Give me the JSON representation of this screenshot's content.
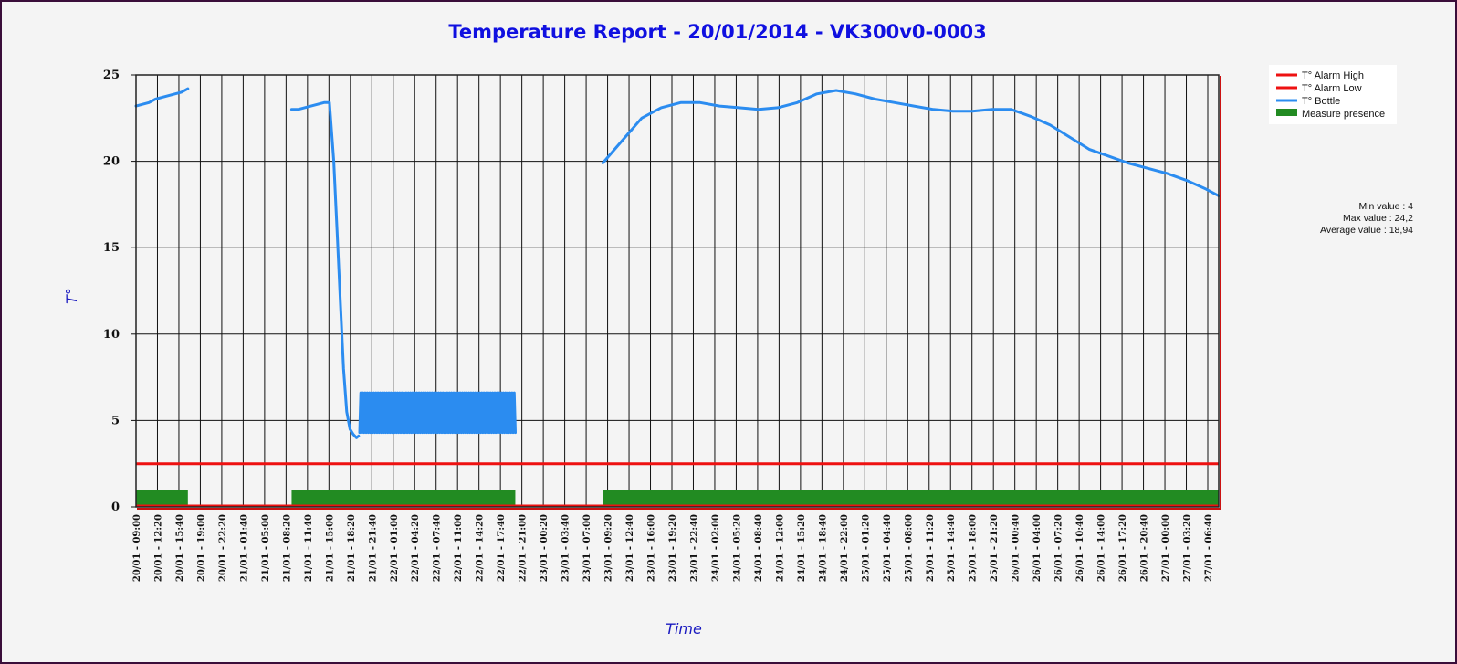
{
  "chart_data": {
    "type": "line",
    "title": "Temperature Report - 20/01/2014 - VK300v0-0003",
    "xlabel": "Time",
    "ylabel": "T°",
    "ylim": [
      0,
      25
    ],
    "yticks": [
      0,
      5,
      10,
      15,
      20,
      25
    ],
    "grid": true,
    "legend_position": "top-right",
    "x_range": [
      "20/01/2014 09:00",
      "27/01/2014 08:00"
    ],
    "x_tick_labels": [
      "20/01 - 09:00",
      "20/01 - 12:20",
      "20/01 - 15:40",
      "20/01 - 19:00",
      "20/01 - 22:20",
      "21/01 - 01:40",
      "21/01 - 05:00",
      "21/01 - 08:20",
      "21/01 - 11:40",
      "21/01 - 15:00",
      "21/01 - 18:20",
      "21/01 - 21:40",
      "22/01 - 01:00",
      "22/01 - 04:20",
      "22/01 - 07:40",
      "22/01 - 11:00",
      "22/01 - 14:20",
      "22/01 - 17:40",
      "22/01 - 21:00",
      "23/01 - 00:20",
      "23/01 - 03:40",
      "23/01 - 07:00",
      "23/01 - 09:20",
      "23/01 - 12:40",
      "23/01 - 16:00",
      "23/01 - 19:20",
      "23/01 - 22:40",
      "24/01 - 02:00",
      "24/01 - 05:20",
      "24/01 - 08:40",
      "24/01 - 12:00",
      "24/01 - 15:20",
      "24/01 - 18:40",
      "24/01 - 22:00",
      "25/01 - 01:20",
      "25/01 - 04:40",
      "25/01 - 08:00",
      "25/01 - 11:20",
      "25/01 - 14:40",
      "25/01 - 18:00",
      "25/01 - 21:20",
      "26/01 - 00:40",
      "26/01 - 04:00",
      "26/01 - 07:20",
      "26/01 - 10:40",
      "26/01 - 14:00",
      "26/01 - 17:20",
      "26/01 - 20:40",
      "27/01 - 00:00",
      "27/01 - 03:20",
      "27/01 - 06:40"
    ],
    "series": [
      {
        "name": "T° Alarm High",
        "color": "#ee1111",
        "kind": "line",
        "values": []
      },
      {
        "name": "T° Alarm Low",
        "color": "#ee1111",
        "kind": "line",
        "x": [
          "20/01/2014 09:00",
          "27/01/2014 08:00"
        ],
        "y": [
          2.5,
          2.5
        ]
      },
      {
        "name": "T° Bottle",
        "color": "#2b8cf0",
        "kind": "line",
        "segments": [
          {
            "x": [
              "20/01/2014 09:00",
              "20/01/2014 10:00",
              "20/01/2014 11:00",
              "20/01/2014 12:00",
              "20/01/2014 13:00",
              "20/01/2014 14:00",
              "20/01/2014 15:00",
              "20/01/2014 16:00",
              "20/01/2014 17:00"
            ],
            "y": [
              23.2,
              23.3,
              23.4,
              23.6,
              23.7,
              23.8,
              23.9,
              24.0,
              24.2
            ]
          },
          {
            "x": [
              "21/01/2014 09:00",
              "21/01/2014 10:00",
              "21/01/2014 11:00",
              "21/01/2014 12:00",
              "21/01/2014 13:00",
              "21/01/2014 14:00",
              "21/01/2014 14:50",
              "21/01/2014 15:30",
              "21/01/2014 16:00",
              "21/01/2014 16:30",
              "21/01/2014 17:00",
              "21/01/2014 17:30",
              "21/01/2014 18:00",
              "21/01/2014 18:30",
              "21/01/2014 19:00",
              "21/01/2014 19:20"
            ],
            "y": [
              23.0,
              23.0,
              23.1,
              23.2,
              23.3,
              23.4,
              23.4,
              20.0,
              16.0,
              12.0,
              8.0,
              5.5,
              4.5,
              4.2,
              4.0,
              4.1
            ]
          },
          {
            "x": [
              "21/01/2014 19:30",
              "22/01/2014 19:30"
            ],
            "y": [
              4.3,
              6.6
            ],
            "oscillation": {
              "low": 4.3,
              "high": 6.6,
              "cycles": 72
            }
          },
          {
            "x": [
              "23/01/2014 09:00",
              "23/01/2014 12:00",
              "23/01/2014 15:00",
              "23/01/2014 18:00",
              "23/01/2014 21:00",
              "24/01/2014 00:00",
              "24/01/2014 03:00",
              "24/01/2014 06:00",
              "24/01/2014 09:00",
              "24/01/2014 12:00",
              "24/01/2014 15:00",
              "24/01/2014 18:00",
              "24/01/2014 21:00",
              "25/01/2014 00:00",
              "25/01/2014 03:00",
              "25/01/2014 06:00",
              "25/01/2014 09:00",
              "25/01/2014 12:00",
              "25/01/2014 15:00",
              "25/01/2014 18:00",
              "25/01/2014 21:00",
              "26/01/2014 00:00",
              "26/01/2014 03:00",
              "26/01/2014 06:00",
              "26/01/2014 09:00",
              "26/01/2014 12:00",
              "26/01/2014 15:00",
              "26/01/2014 18:00",
              "26/01/2014 21:00",
              "27/01/2014 00:00",
              "27/01/2014 03:00",
              "27/01/2014 06:00",
              "27/01/2014 08:00"
            ],
            "y": [
              19.9,
              21.2,
              22.5,
              23.1,
              23.4,
              23.4,
              23.2,
              23.1,
              23.0,
              23.1,
              23.4,
              23.9,
              24.1,
              23.9,
              23.6,
              23.4,
              23.2,
              23.0,
              22.9,
              22.9,
              23.0,
              23.0,
              22.6,
              22.1,
              21.4,
              20.7,
              20.3,
              19.9,
              19.6,
              19.3,
              18.9,
              18.4,
              18.0
            ]
          }
        ]
      },
      {
        "name": "Measure presence",
        "color": "#228b22",
        "kind": "band",
        "level": 1,
        "intervals": [
          [
            "20/01/2014 09:00",
            "20/01/2014 17:00"
          ],
          [
            "21/01/2014 09:00",
            "22/01/2014 19:30"
          ],
          [
            "23/01/2014 09:00",
            "27/01/2014 08:00"
          ]
        ]
      }
    ],
    "stats": {
      "min": "Min value : 4",
      "max": "Max value : 24,2",
      "avg": "Average value : 18,94"
    }
  }
}
